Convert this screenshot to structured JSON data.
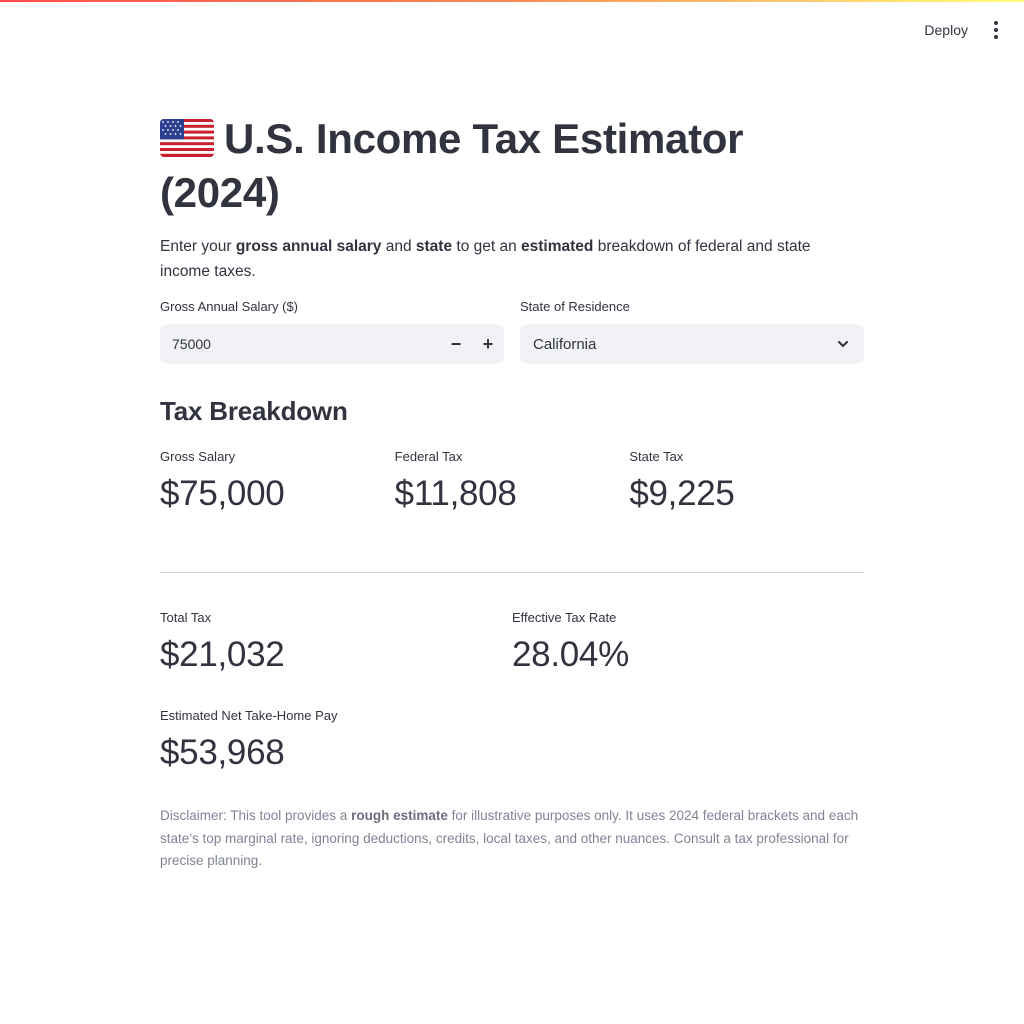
{
  "header": {
    "deploy_label": "Deploy",
    "menu_icon": "vertical-ellipsis-icon"
  },
  "page": {
    "flag_icon": "us-flag-icon",
    "title_line1": "U.S. Income Tax Estimator",
    "title_line2": "(2024)",
    "intro": {
      "part1": "Enter your ",
      "bold1": "gross annual salary",
      "part2": " and ",
      "bold2": "state",
      "part3": " to get an ",
      "bold3": "estimated",
      "part4": " breakdown of federal and state income taxes."
    }
  },
  "inputs": {
    "salary": {
      "label": "Gross Annual Salary ($)",
      "value": "75000",
      "minus_label": "−",
      "plus_label": "+"
    },
    "state": {
      "label": "State of Residence",
      "selected": "California"
    }
  },
  "breakdown": {
    "title": "Tax Breakdown",
    "gross": {
      "label": "Gross Salary",
      "value": "$75,000"
    },
    "federal": {
      "label": "Federal Tax",
      "value": "$11,808"
    },
    "state": {
      "label": "State Tax",
      "value": "$9,225"
    },
    "total": {
      "label": "Total Tax",
      "value": "$21,032"
    },
    "effective": {
      "label": "Effective Tax Rate",
      "value": "28.04%"
    },
    "net": {
      "label": "Estimated Net Take-Home Pay",
      "value": "$53,968"
    }
  },
  "disclaimer": {
    "part1": "Disclaimer: This tool provides a ",
    "bold": "rough estimate",
    "part2": " for illustrative purposes only. It uses 2024 federal brackets and each state’s top marginal rate, ignoring deductions, credits, local taxes, and other nuances. Consult a tax professional for precise planning."
  },
  "colors": {
    "accent_gradient_start": "#ff4b4b",
    "accent_gradient_end": "#fffd80",
    "input_bg": "#f0f2f6",
    "text": "#31333f",
    "muted_text": "#808495"
  }
}
